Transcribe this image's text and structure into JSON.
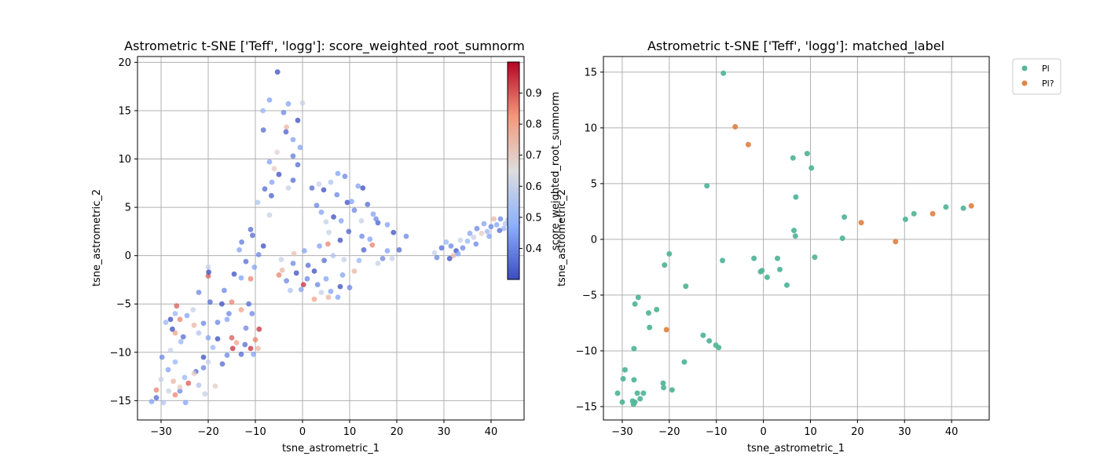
{
  "chart_data": [
    {
      "type": "scatter",
      "title": "Astrometric t-SNE ['Teff', 'logg']: score_weighted_root_sumnorm",
      "xlabel": "tsne_astrometric_1",
      "ylabel": "tsne_astrometric_2",
      "xlim": [
        -35,
        47
      ],
      "ylim": [
        -17,
        20.6
      ],
      "xticks": [
        -30,
        -20,
        -10,
        0,
        10,
        20,
        30,
        40
      ],
      "yticks": [
        -15,
        -10,
        -5,
        0,
        5,
        10,
        15,
        20
      ],
      "grid": true,
      "colormap": "coolwarm",
      "colorbar": {
        "label": "score_weighted_root_sumnorm",
        "ticks": [
          0.4,
          0.5,
          0.6,
          0.7,
          0.8,
          0.9
        ],
        "range": [
          0.3,
          1.0
        ]
      },
      "points": [
        [
          -5.3,
          19.0,
          0.3
        ],
        [
          -3,
          15.7,
          0.45
        ],
        [
          0,
          15.8,
          0.6
        ],
        [
          -7,
          16.1,
          0.45
        ],
        [
          -8.4,
          15.0,
          0.5
        ],
        [
          -4,
          14.8,
          0.4
        ],
        [
          -1,
          14.0,
          0.3
        ],
        [
          -3.4,
          13.3,
          0.75
        ],
        [
          -8.3,
          13.0,
          0.35
        ],
        [
          -3.5,
          12.8,
          0.33
        ],
        [
          -2,
          12.0,
          0.45
        ],
        [
          -0.5,
          11.2,
          0.45
        ],
        [
          -2,
          10.3,
          0.38
        ],
        [
          -5.4,
          10.7,
          0.68
        ],
        [
          -7,
          9.7,
          0.45
        ],
        [
          -6,
          9.0,
          0.7
        ],
        [
          -1,
          9.4,
          0.35
        ],
        [
          -5,
          8.4,
          0.3
        ],
        [
          -6.5,
          7.6,
          0.45
        ],
        [
          -3,
          7.0,
          0.6
        ],
        [
          -2,
          7.8,
          0.35
        ],
        [
          -8,
          6.9,
          0.35
        ],
        [
          -6.6,
          6.2,
          0.33
        ],
        [
          -9.5,
          5.5,
          0.55
        ],
        [
          -7,
          4.2,
          0.6
        ],
        [
          -11,
          2.7,
          0.35
        ],
        [
          -8.3,
          1.0,
          0.3
        ],
        [
          -12.9,
          1.4,
          0.38
        ],
        [
          -10.6,
          2.1,
          0.35
        ],
        [
          -13.4,
          0.6,
          0.45
        ],
        [
          -12,
          -0.6,
          0.35
        ],
        [
          -10.2,
          -1.2,
          0.45
        ],
        [
          -11,
          -2.4,
          0.85
        ],
        [
          -13,
          -2.3,
          0.45
        ],
        [
          -9.3,
          0.1,
          0.4
        ],
        [
          -14.5,
          -1.9,
          0.3
        ],
        [
          -16.6,
          -3.6,
          0.4
        ],
        [
          -17.1,
          -5.0,
          0.3
        ],
        [
          -15,
          -4.8,
          0.85
        ],
        [
          -16,
          -6.6,
          0.45
        ],
        [
          -18,
          -6.9,
          0.4
        ],
        [
          -19.6,
          -4.8,
          0.35
        ],
        [
          -20,
          -2.1,
          0.9
        ],
        [
          -19.9,
          -1.7,
          0.3
        ],
        [
          -20,
          -1.2,
          0.6
        ],
        [
          -22,
          -3.8,
          0.4
        ],
        [
          -23.2,
          -5.6,
          0.6
        ],
        [
          -24.5,
          -6.2,
          0.45
        ],
        [
          -26.7,
          -5.2,
          0.9
        ],
        [
          -27,
          -6.0,
          0.5
        ],
        [
          -28,
          -6.6,
          0.3
        ],
        [
          -29,
          -6.9,
          0.5
        ],
        [
          -27,
          -8.0,
          0.8
        ],
        [
          -25.3,
          -8.4,
          0.35
        ],
        [
          -22,
          -8.0,
          0.55
        ],
        [
          -21,
          -7.0,
          0.4
        ],
        [
          -20,
          -8.5,
          0.45
        ],
        [
          -18,
          -8.6,
          0.3
        ],
        [
          -15,
          -8.5,
          0.9
        ],
        [
          -14,
          -9.0,
          0.8
        ],
        [
          -12.2,
          -9.2,
          0.35
        ],
        [
          -11,
          -9.6,
          0.95
        ],
        [
          -10,
          -8.7,
          0.85
        ],
        [
          -9.2,
          -7.6,
          0.95
        ],
        [
          -9.4,
          -9.6,
          0.75
        ],
        [
          -10.4,
          -10.2,
          0.45
        ],
        [
          -13,
          -10.2,
          0.35
        ],
        [
          -14.8,
          -9.6,
          0.95
        ],
        [
          -16,
          -10.3,
          0.4
        ],
        [
          -17,
          -11.2,
          0.35
        ],
        [
          -20,
          -11.0,
          0.6
        ],
        [
          -21,
          -11.6,
          0.4
        ],
        [
          -22.6,
          -12.0,
          0.35
        ],
        [
          -24.2,
          -13.2,
          0.9
        ],
        [
          -25,
          -12.6,
          0.5
        ],
        [
          -26,
          -14.0,
          0.4
        ],
        [
          -27,
          -14.4,
          0.85
        ],
        [
          -28.4,
          -14.0,
          0.6
        ],
        [
          -29.5,
          -15.2,
          0.55
        ],
        [
          -31,
          -14.7,
          0.35
        ],
        [
          -32,
          -15.1,
          0.45
        ],
        [
          -31,
          -13.9,
          0.85
        ],
        [
          -30,
          -12.8,
          0.6
        ],
        [
          -28.5,
          -11.8,
          0.45
        ],
        [
          -29.8,
          -10.5,
          0.4
        ],
        [
          -28,
          -9.8,
          0.6
        ],
        [
          -27,
          -11.0,
          0.5
        ],
        [
          -23,
          -12.2,
          0.7
        ],
        [
          -22,
          -13.4,
          0.55
        ],
        [
          -20.7,
          -14.3,
          0.6
        ],
        [
          -26,
          -13.6,
          0.7
        ],
        [
          -24.8,
          -15.2,
          0.45
        ],
        [
          -18.5,
          -13.5,
          0.7
        ],
        [
          -21,
          -10.5,
          0.3
        ],
        [
          -12,
          -7.5,
          0.4
        ],
        [
          -19,
          -9.5,
          0.5
        ],
        [
          -23,
          -7.2,
          0.75
        ],
        [
          -25.8,
          -8.9,
          0.5
        ],
        [
          -27.4,
          -13.0,
          0.75
        ],
        [
          -15.6,
          -6.0,
          0.4
        ],
        [
          -13,
          -5.6,
          0.8
        ],
        [
          -11.4,
          -5.0,
          0.35
        ],
        [
          -10.7,
          -6.0,
          0.4
        ],
        [
          -26,
          -6.6,
          0.85
        ],
        [
          -27.6,
          -7.6,
          0.3
        ],
        [
          0.2,
          -3.0,
          0.95
        ],
        [
          2.5,
          -4.5,
          0.8
        ],
        [
          4,
          -3.8,
          0.6
        ],
        [
          6,
          -3.7,
          0.45
        ],
        [
          8,
          -3.2,
          0.3
        ],
        [
          7.5,
          -4.3,
          0.45
        ],
        [
          5.5,
          -4.3,
          0.75
        ],
        [
          1,
          -2.4,
          0.4
        ],
        [
          -1.3,
          -1.8,
          0.3
        ],
        [
          -2,
          -0.8,
          0.4
        ],
        [
          -4.3,
          -1.5,
          0.75
        ],
        [
          -5,
          -2.0,
          0.85
        ],
        [
          -4.5,
          -0.4,
          0.6
        ],
        [
          -1.8,
          0.2,
          0.72
        ],
        [
          0.4,
          0.5,
          0.45
        ],
        [
          2.5,
          -1.6,
          0.3
        ],
        [
          3.2,
          -3.0,
          0.4
        ],
        [
          5,
          -2.4,
          0.45
        ],
        [
          4.6,
          -0.5,
          0.35
        ],
        [
          5.4,
          1.2,
          0.85
        ],
        [
          6.5,
          0.0,
          0.55
        ],
        [
          8,
          1.6,
          0.3
        ],
        [
          8.8,
          -0.4,
          0.6
        ],
        [
          8.5,
          -2.0,
          0.45
        ],
        [
          11,
          -1.6,
          0.75
        ],
        [
          10,
          -3.3,
          0.4
        ],
        [
          12,
          -0.5,
          0.5
        ],
        [
          13,
          0.6,
          0.33
        ],
        [
          14.8,
          1.1,
          0.85
        ],
        [
          16,
          -0.8,
          0.6
        ],
        [
          17,
          -0.3,
          0.4
        ],
        [
          18,
          0.5,
          0.45
        ],
        [
          19,
          -0.3,
          0.6
        ],
        [
          20.5,
          0.6,
          0.35
        ],
        [
          22,
          2.0,
          0.4
        ],
        [
          19.3,
          2.4,
          0.3
        ],
        [
          18,
          3.2,
          0.45
        ],
        [
          16,
          3.4,
          0.33
        ],
        [
          15,
          4.3,
          0.45
        ],
        [
          12.5,
          3.6,
          0.6
        ],
        [
          11,
          4.7,
          0.4
        ],
        [
          9.5,
          5.5,
          0.3
        ],
        [
          11.8,
          7.2,
          0.45
        ],
        [
          12.8,
          7.0,
          0.3
        ],
        [
          9,
          8.2,
          0.4
        ],
        [
          7.5,
          8.5,
          0.45
        ],
        [
          6,
          7.6,
          0.55
        ],
        [
          4.5,
          6.8,
          0.3
        ],
        [
          3.5,
          7.4,
          0.6
        ],
        [
          2,
          7.0,
          0.35
        ],
        [
          3,
          5.2,
          0.4
        ],
        [
          4,
          4.5,
          0.45
        ],
        [
          5,
          3.5,
          0.6
        ],
        [
          6.6,
          4.0,
          0.3
        ],
        [
          8.2,
          3.6,
          0.45
        ],
        [
          9.8,
          2.5,
          0.33
        ],
        [
          12.6,
          2.0,
          0.4
        ],
        [
          14.3,
          1.7,
          0.45
        ],
        [
          15.6,
          3.8,
          0.4
        ],
        [
          13.8,
          5.3,
          0.35
        ],
        [
          10.4,
          5.6,
          0.45
        ],
        [
          7.3,
          6.3,
          0.4
        ],
        [
          5.6,
          2.4,
          0.6
        ],
        [
          3.6,
          1.0,
          0.45
        ],
        [
          1.2,
          -1.0,
          0.35
        ],
        [
          -0.3,
          -3.5,
          0.45
        ],
        [
          -2.6,
          -3.6,
          0.55
        ],
        [
          -3.4,
          -2.6,
          0.4
        ],
        [
          28,
          0.3,
          0.6
        ],
        [
          28.5,
          -0.2,
          0.4
        ],
        [
          29.5,
          0.8,
          0.35
        ],
        [
          30.5,
          1.4,
          0.5
        ],
        [
          31.5,
          1.0,
          0.4
        ],
        [
          32,
          0.0,
          0.75
        ],
        [
          32.6,
          0.5,
          0.3
        ],
        [
          33.5,
          1.6,
          0.6
        ],
        [
          34,
          0.8,
          0.4
        ],
        [
          35,
          1.5,
          0.5
        ],
        [
          35.5,
          2.3,
          0.45
        ],
        [
          36.3,
          1.9,
          0.6
        ],
        [
          37,
          2.8,
          0.4
        ],
        [
          38,
          2.3,
          0.7
        ],
        [
          38.5,
          3.3,
          0.45
        ],
        [
          39.2,
          2.5,
          0.5
        ],
        [
          40,
          3.0,
          0.4
        ],
        [
          40.6,
          3.8,
          0.75
        ],
        [
          41.2,
          3.2,
          0.45
        ],
        [
          42,
          3.8,
          0.4
        ],
        [
          42.7,
          2.8,
          0.5
        ],
        [
          43.5,
          3.7,
          0.6
        ],
        [
          44,
          3.1,
          0.4
        ],
        [
          44.6,
          3.9,
          0.45
        ],
        [
          45,
          3.0,
          0.5
        ],
        [
          45.6,
          3.4,
          0.4
        ],
        [
          31.2,
          -0.3,
          0.3
        ],
        [
          33,
          0.2,
          0.45
        ],
        [
          36.8,
          1.2,
          0.4
        ],
        [
          39.6,
          2.0,
          0.45
        ],
        [
          41.8,
          2.6,
          0.35
        ],
        [
          43,
          3.3,
          0.55
        ]
      ]
    },
    {
      "type": "scatter",
      "title": "Astrometric t-SNE ['Teff', 'logg']: matched_label",
      "xlabel": "tsne_astrometric_1",
      "ylabel": "tsne_astrometric_2",
      "xlim": [
        -34,
        48
      ],
      "ylim": [
        -16.2,
        16.4
      ],
      "xticks": [
        -30,
        -20,
        -10,
        0,
        10,
        20,
        30,
        40
      ],
      "yticks": [
        -15,
        -10,
        -5,
        0,
        5,
        10,
        15
      ],
      "grid": true,
      "legend": {
        "position": "outside-top-right",
        "entries": [
          "Pl",
          "Pl?"
        ]
      },
      "colors": {
        "Pl": "#55b699",
        "Pl?": "#e0864a"
      },
      "series": [
        {
          "name": "Pl",
          "points": [
            [
              -8.5,
              14.9
            ],
            [
              9.3,
              7.7
            ],
            [
              6.3,
              7.3
            ],
            [
              10.2,
              6.4
            ],
            [
              -12,
              4.8
            ],
            [
              6.9,
              3.8
            ],
            [
              17.2,
              2.0
            ],
            [
              6.5,
              0.8
            ],
            [
              6.8,
              0.3
            ],
            [
              16.8,
              0.1
            ],
            [
              30.2,
              1.8
            ],
            [
              32,
              2.3
            ],
            [
              38.8,
              2.9
            ],
            [
              42.5,
              2.8
            ],
            [
              -20,
              -1.3
            ],
            [
              -21,
              -2.3
            ],
            [
              -8.7,
              -1.9
            ],
            [
              -2,
              -1.7
            ],
            [
              3,
              -1.7
            ],
            [
              10.9,
              -1.6
            ],
            [
              -0.6,
              -2.9
            ],
            [
              -0.3,
              -2.8
            ],
            [
              0.8,
              -3.4
            ],
            [
              3.5,
              -2.7
            ],
            [
              5,
              -4.1
            ],
            [
              -16.5,
              -4.2
            ],
            [
              -26.6,
              -5.2
            ],
            [
              -27.3,
              -5.8
            ],
            [
              -22.7,
              -6.3
            ],
            [
              -24.4,
              -6.6
            ],
            [
              -24.2,
              -7.9
            ],
            [
              -12.8,
              -8.6
            ],
            [
              -11.5,
              -9.1
            ],
            [
              -10.1,
              -9.5
            ],
            [
              -9.5,
              -9.7
            ],
            [
              -27.5,
              -9.8
            ],
            [
              -16.8,
              -11.0
            ],
            [
              -29.4,
              -11.7
            ],
            [
              -21.3,
              -12.9
            ],
            [
              -29.8,
              -12.5
            ],
            [
              -27.5,
              -12.6
            ],
            [
              -21.2,
              -13.3
            ],
            [
              -19.4,
              -13.5
            ],
            [
              -31,
              -13.8
            ],
            [
              -26.8,
              -13.8
            ],
            [
              -25.5,
              -13.8
            ],
            [
              -26.2,
              -14.3
            ],
            [
              -30,
              -14.6
            ],
            [
              -27.8,
              -14.5
            ],
            [
              -27.3,
              -14.6
            ],
            [
              -27.6,
              -14.8
            ]
          ]
        },
        {
          "name": "Pl?",
          "points": [
            [
              -6,
              10.1
            ],
            [
              -3.2,
              8.5
            ],
            [
              20.8,
              1.5
            ],
            [
              36,
              2.3
            ],
            [
              44.2,
              3.0
            ],
            [
              28.1,
              -0.2
            ],
            [
              -20.6,
              -8.1
            ]
          ]
        }
      ]
    }
  ]
}
